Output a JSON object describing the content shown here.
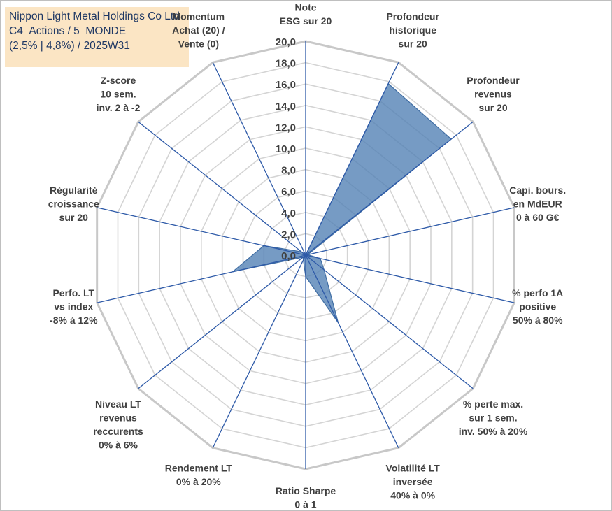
{
  "title_lines": [
    "Nippon Light Metal Holdings Co Ltd",
    "C4_Actions / 5_MONDE",
    "(2,5% | 4,8%) / 2025W31"
  ],
  "chart_data": {
    "type": "radar",
    "title": "Nippon Light Metal Holdings Co Ltd",
    "subtitle": [
      "C4_Actions / 5_MONDE",
      "(2,5% | 4,8%) / 2025W31"
    ],
    "axis_range": [
      0,
      20
    ],
    "tick_step": 2,
    "tick_labels": [
      "0,0",
      "2,0",
      "4,0",
      "6,0",
      "8,0",
      "10,0",
      "12,0",
      "14,0",
      "16,0",
      "18,0",
      "20,0"
    ],
    "categories": [
      [
        "Note",
        "ESG sur 20"
      ],
      [
        "Profondeur",
        "historique",
        "sur 20"
      ],
      [
        "Profondeur",
        "revenus",
        "sur 20"
      ],
      [
        "Capi. bours.",
        "en MdEUR",
        "0 à 60 G€"
      ],
      [
        "% perfo 1A",
        "positive",
        "50% à 80%"
      ],
      [
        "% perte max.",
        "sur 1 sem.",
        "inv. 50% à 20%"
      ],
      [
        "Volatilité LT",
        "inversée",
        "40% à 0%"
      ],
      [
        "Ratio Sharpe",
        "0 à 1"
      ],
      [
        "Rendement LT",
        "0% à 20%"
      ],
      [
        "Niveau LT",
        "revenus",
        "reccurents",
        "0% à 6%"
      ],
      [
        "Perfo. LT",
        "vs index",
        "-8% à 12%"
      ],
      [
        "Régularité",
        "croissance",
        "sur 20"
      ],
      [
        "Z-score",
        "10 sem.",
        "inv. 2 à -2"
      ],
      [
        "Momentum",
        "Achat (20) /",
        "Vente (0)"
      ]
    ],
    "series": [
      {
        "values": [
          0,
          17.8,
          17.4,
          0.2,
          1.4,
          2.2,
          7.0,
          2.0,
          0.5,
          0.3,
          7.0,
          4.0,
          0.5,
          0
        ]
      }
    ],
    "grid": true,
    "legend": "none"
  },
  "colors": {
    "series_fill": "#4f7fb3",
    "series_stroke": "#3f6da3",
    "ring_grid": "#d4d4d4",
    "outer_ring": "#c8c8c8",
    "spokes": "#2e5aa8",
    "title_box": "#fbe5c4",
    "title_text": "#1f3864"
  }
}
